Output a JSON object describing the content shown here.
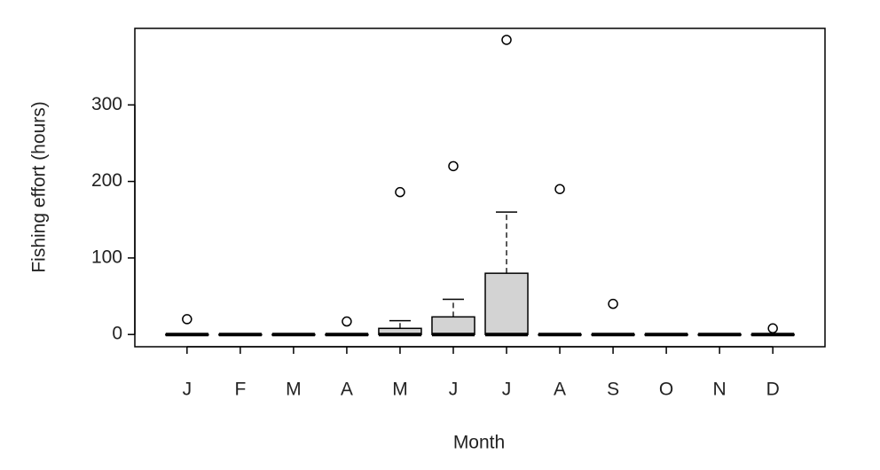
{
  "chart_data": {
    "type": "box",
    "x_label": "Month",
    "y_label": "Fishing effort (hours)",
    "categories": [
      "J",
      "F",
      "M",
      "A",
      "M",
      "J",
      "J",
      "A",
      "S",
      "O",
      "N",
      "D"
    ],
    "min": [
      0,
      0,
      0,
      0,
      0,
      0,
      0,
      0,
      0,
      0,
      0,
      0
    ],
    "q1": [
      0,
      0,
      0,
      0,
      0,
      0,
      0,
      0,
      0,
      0,
      0,
      0
    ],
    "median": [
      0,
      0,
      0,
      0,
      0,
      0,
      0,
      0,
      0,
      0,
      0,
      0
    ],
    "q3": [
      0,
      0,
      0,
      0,
      8,
      23,
      80,
      0,
      0,
      0,
      0,
      0
    ],
    "max": [
      0,
      0,
      0,
      0,
      18,
      46,
      160,
      0,
      0,
      0,
      0,
      0
    ],
    "outliers": [
      [
        20
      ],
      [],
      [],
      [
        17
      ],
      [
        186
      ],
      [
        220
      ],
      [
        385
      ],
      [
        190
      ],
      [
        40
      ],
      [],
      [],
      [
        8
      ]
    ],
    "color": "#d3d3d3",
    "ylim": [
      -16,
      400
    ],
    "yticks": [
      0,
      100,
      200,
      300
    ]
  }
}
